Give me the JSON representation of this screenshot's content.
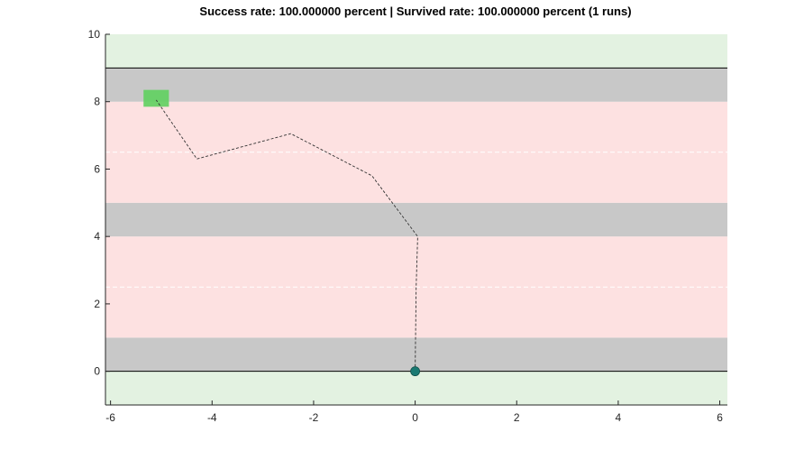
{
  "chart_data": {
    "type": "line",
    "title": "Success rate: 100.000000 percent | Survived rate: 100.000000 percent (1 runs)",
    "xlabel": "",
    "ylabel": "",
    "xlim": [
      -6.1,
      6.15
    ],
    "ylim": [
      -1,
      10
    ],
    "x_ticks": [
      -6,
      -4,
      -2,
      0,
      2,
      4,
      6
    ],
    "y_ticks": [
      0,
      2,
      4,
      6,
      8,
      10
    ],
    "x_tick_labels": [
      "-6",
      "-4",
      "-2",
      "0",
      "2",
      "4",
      "6"
    ],
    "y_tick_labels": [
      "0",
      "2",
      "4",
      "6",
      "8",
      "10"
    ],
    "grid": false,
    "bands": [
      {
        "kind": "safe-zone",
        "y0": -1,
        "y1": 0,
        "color": "#e3f2e1"
      },
      {
        "kind": "sidewalk",
        "y0": 0,
        "y1": 1,
        "color": "#c8c8c8"
      },
      {
        "kind": "road",
        "y0": 1,
        "y1": 4,
        "color": "#fde1e1"
      },
      {
        "kind": "median",
        "y0": 4,
        "y1": 5,
        "color": "#c8c8c8"
      },
      {
        "kind": "road",
        "y0": 5,
        "y1": 8,
        "color": "#fde1e1"
      },
      {
        "kind": "sidewalk",
        "y0": 8,
        "y1": 9,
        "color": "#c8c8c8"
      },
      {
        "kind": "safe-zone",
        "y0": 9,
        "y1": 10,
        "color": "#e3f2e1"
      }
    ],
    "boundary_lines": [
      0,
      9
    ],
    "lane_dividers": [
      2.5,
      6.5
    ],
    "goal": {
      "x0": -5.35,
      "x1": -4.85,
      "y0": 7.85,
      "y1": 8.35,
      "color": "#5fd05f"
    },
    "start": {
      "x": 0,
      "y": 0,
      "color": "#1a7a72"
    },
    "series": [
      {
        "style": "dashed",
        "color": "#333333",
        "x": [
          0,
          0.02,
          0.05,
          -0.85,
          -2.45,
          -4.3,
          -5.1
        ],
        "y": [
          0,
          2.5,
          4,
          5.8,
          7.05,
          6.3,
          8.05
        ]
      }
    ]
  }
}
